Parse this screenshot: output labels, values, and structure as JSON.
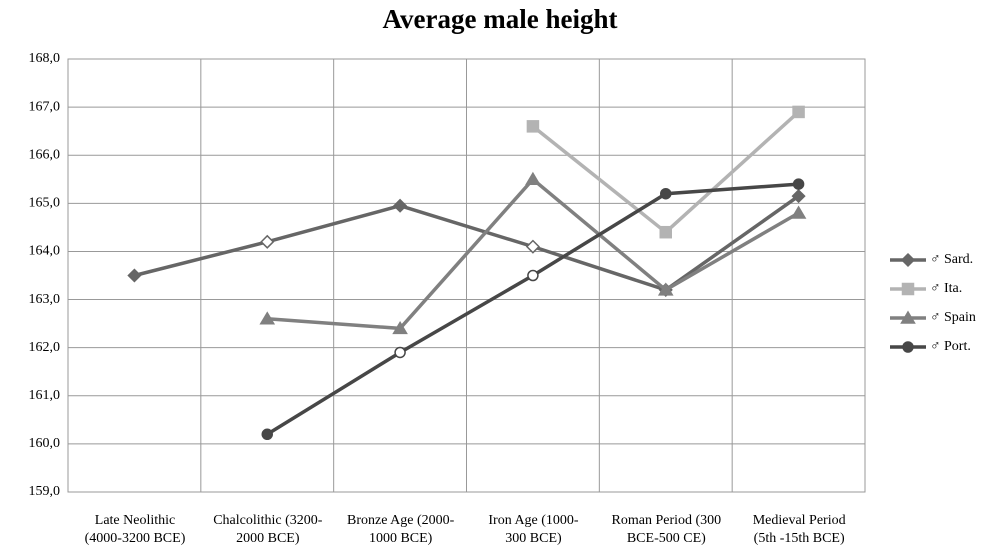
{
  "chart_data": {
    "type": "line",
    "title": "Average male height",
    "categories": [
      "Late Neolithic\n(4000-3200 BCE)",
      "Chalcolithic (3200-\n2000 BCE)",
      "Bronze Age (2000-\n1000 BCE)",
      "Iron Age (1000-\n300 BCE)",
      "Roman Period (300\nBCE-500 CE)",
      "Medieval Period\n(5th -15th BCE)"
    ],
    "series": [
      {
        "name": "♂ Sard.",
        "color": "#666666",
        "marker": "diamond",
        "hollow_points": [
          1,
          3
        ],
        "values": [
          163.5,
          164.2,
          164.95,
          164.1,
          163.2,
          165.15
        ]
      },
      {
        "name": "♂ Ita.",
        "color": "#b3b3b3",
        "marker": "square",
        "hollow_points": [],
        "values": [
          null,
          null,
          null,
          166.6,
          164.4,
          166.9
        ]
      },
      {
        "name": "♂ Spain",
        "color": "#808080",
        "marker": "triangle",
        "hollow_points": [],
        "values": [
          null,
          162.6,
          162.4,
          165.5,
          163.2,
          164.8
        ]
      },
      {
        "name": "♂ Port.",
        "color": "#474747",
        "marker": "circle",
        "hollow_points": [
          2,
          3
        ],
        "values": [
          null,
          160.2,
          161.9,
          163.5,
          165.2,
          165.4
        ]
      }
    ],
    "ylim": [
      159,
      168
    ],
    "yticks": [
      {
        "value": 159,
        "label": "159,0"
      },
      {
        "value": 160,
        "label": "160,0"
      },
      {
        "value": 161,
        "label": "161,0"
      },
      {
        "value": 162,
        "label": "162,0"
      },
      {
        "value": 163,
        "label": "163,0"
      },
      {
        "value": 164,
        "label": "164,0"
      },
      {
        "value": 165,
        "label": "165,0"
      },
      {
        "value": 166,
        "label": "166,0"
      },
      {
        "value": 167,
        "label": "167,0"
      },
      {
        "value": 168,
        "label": "168,0"
      }
    ],
    "grid": true,
    "legend": "right"
  }
}
